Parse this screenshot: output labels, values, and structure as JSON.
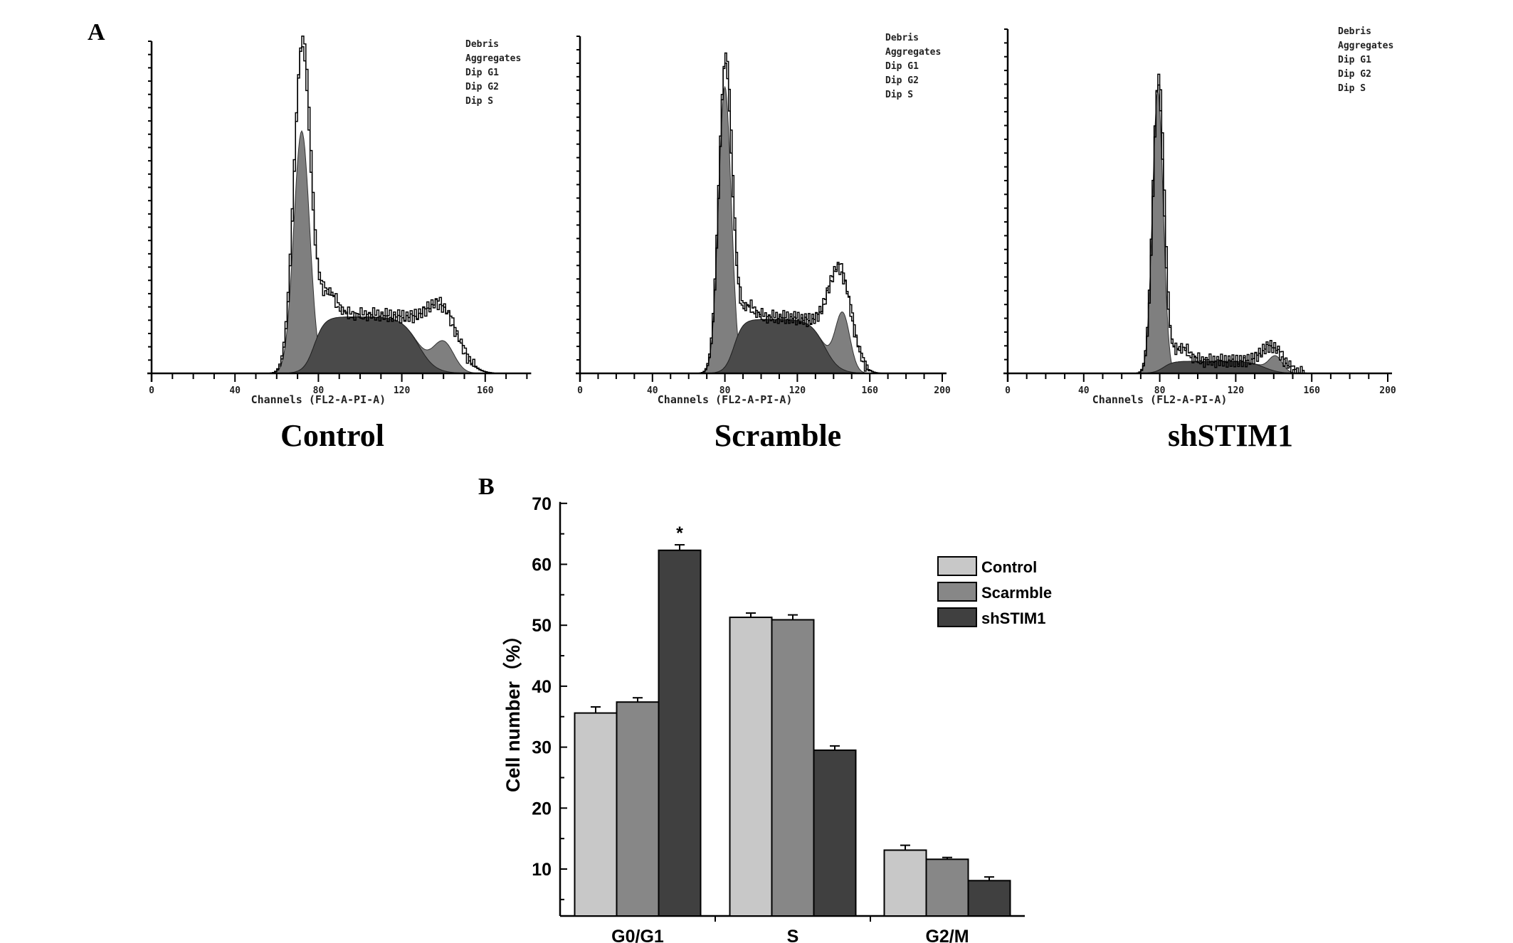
{
  "chart_data": [
    {
      "panel": "A",
      "type": "area",
      "subtype": "flow-cytometry-histogram",
      "xlabel": "Channels (FL2-A-PI-A)",
      "legend_labels": [
        "Debris",
        "Aggregates",
        "Dip G1",
        "Dip G2",
        "Dip S"
      ],
      "legend_placement": "top-right",
      "colors": {
        "g1_g2_fill": "#7f7f7f",
        "s_fill": "#4a4a4a",
        "outline": "#000000"
      },
      "panels": [
        {
          "title": "Control",
          "xlim": [
            0,
            180
          ],
          "x_ticks": [
            "0",
            "40",
            "80",
            "120",
            "160"
          ],
          "components": {
            "g1_mean": 72,
            "g1_sd": 3.8,
            "g1_height": 0.73,
            "g1_raw_peak": 1.0,
            "s_start": 78,
            "s_end": 128,
            "s_height": 0.17,
            "g2_mean": 140,
            "g2_sd": 5,
            "g2_height": 0.09,
            "g2_raw_height": 0.2
          }
        },
        {
          "title": "Scramble",
          "xlim": [
            0,
            200
          ],
          "x_ticks": [
            "0",
            "40",
            "80",
            "120",
            "160",
            "200"
          ],
          "components": {
            "g1_mean": 80,
            "g1_sd": 3.5,
            "g1_height": 0.85,
            "g1_raw_peak": 0.93,
            "s_start": 85,
            "s_end": 135,
            "s_height": 0.16,
            "g2_mean": 145,
            "g2_sd": 4,
            "g2_height": 0.17,
            "g2_raw_height": 0.3
          }
        },
        {
          "title": "shSTIM1",
          "xlim": [
            0,
            200
          ],
          "x_ticks": [
            "0",
            "40",
            "80",
            "120",
            "160",
            "200"
          ],
          "components": {
            "g1_mean": 79,
            "g1_sd": 2.8,
            "g1_height": 0.82,
            "g1_raw_peak": 0.86,
            "s_start": 82,
            "s_end": 135,
            "s_height": 0.035,
            "g2_mean": 141,
            "g2_sd": 3.5,
            "g2_height": 0.045,
            "g2_raw_height": 0.07
          }
        }
      ]
    },
    {
      "panel": "B",
      "type": "bar",
      "categories": [
        "G0/G1",
        "S",
        "G2/M"
      ],
      "series": [
        {
          "name": "Control",
          "color": "#c8c8c8",
          "values": [
            35.6,
            51.3,
            13.1
          ],
          "errors": [
            1.0,
            0.7,
            0.8
          ]
        },
        {
          "name": "Scarmble",
          "color": "#878787",
          "values": [
            37.4,
            50.9,
            11.6
          ],
          "errors": [
            0.7,
            0.8,
            0.3
          ]
        },
        {
          "name": "shSTIM1",
          "color": "#404040",
          "values": [
            62.3,
            29.5,
            8.1
          ],
          "errors": [
            0.9,
            0.7,
            0.6
          ]
        }
      ],
      "annotations": [
        {
          "category": "G0/G1",
          "series": "shSTIM1",
          "text": "*"
        }
      ],
      "xlabel": "",
      "ylabel": "Cell number（%）",
      "ylim": [
        2.3,
        70
      ],
      "y_ticks": [
        "10",
        "20",
        "30",
        "40",
        "50",
        "60",
        "70"
      ],
      "legend_placement": "top-right",
      "grid": false
    }
  ],
  "labels": {
    "panel_a": "A",
    "panel_b": "B"
  }
}
